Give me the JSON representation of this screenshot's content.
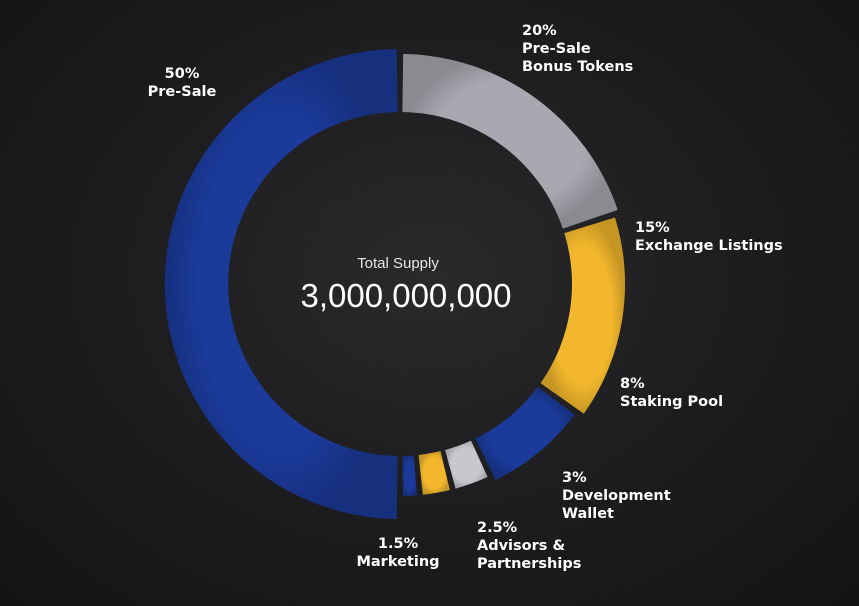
{
  "chart_data": {
    "type": "pie",
    "center": {
      "subtitle": "Total Supply",
      "total": "3,000,000,000"
    },
    "series": [
      {
        "percent_label": "50%",
        "name_lines": [
          "Pre-Sale"
        ],
        "value": 50,
        "color": "#1b3a9a"
      },
      {
        "percent_label": "20%",
        "name_lines": [
          "Pre-Sale",
          "Bonus Tokens"
        ],
        "value": 20,
        "color": "#a8a8b0"
      },
      {
        "percent_label": "15%",
        "name_lines": [
          "Exchange Listings"
        ],
        "value": 15,
        "color": "#f2b72c"
      },
      {
        "percent_label": "8%",
        "name_lines": [
          "Staking Pool"
        ],
        "value": 8,
        "color": "#1b3a9a"
      },
      {
        "percent_label": "3%",
        "name_lines": [
          "Development",
          "Wallet"
        ],
        "value": 3,
        "color": "#c8c8cc"
      },
      {
        "percent_label": "2.5%",
        "name_lines": [
          "Advisors &",
          "Partnerships"
        ],
        "value": 2.5,
        "color": "#f2b72c"
      },
      {
        "percent_label": "1.5%",
        "name_lines": [
          "Marketing"
        ],
        "value": 1.5,
        "color": "#1b3a9a"
      }
    ]
  }
}
